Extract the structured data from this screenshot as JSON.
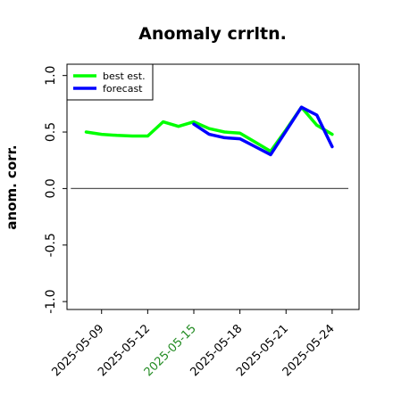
{
  "chart_data": {
    "type": "line",
    "title": "Anomaly crrltn.",
    "ylabel": "anom. corr.",
    "xlabel": "",
    "ylim": [
      -1.07,
      1.1
    ],
    "yticks": [
      -1.0,
      -0.5,
      0.0,
      0.5,
      1.0
    ],
    "ytick_labels": [
      "-1.0",
      "-0.5",
      "0.0",
      "0.5",
      "1.0"
    ],
    "xticks": [
      "2025-05-09",
      "2025-05-12",
      "2025-05-15",
      "2025-05-18",
      "2025-05-21",
      "2025-05-24"
    ],
    "highlighted_xtick": "2025-05-15",
    "highlight_color": "#228b22",
    "xlim": [
      "2025-05-06T18:00",
      "2025-05-25T18:00"
    ],
    "reference_line_y": 0.0,
    "legend": {
      "placement": "top-left",
      "entries": [
        "best est.",
        "forecast"
      ]
    },
    "grid": false,
    "series": [
      {
        "name": "best est.",
        "color": "#00ff00",
        "points": [
          [
            "2025-05-08",
            0.5
          ],
          [
            "2025-05-09",
            0.48
          ],
          [
            "2025-05-10",
            0.47
          ],
          [
            "2025-05-11",
            0.465
          ],
          [
            "2025-05-12",
            0.465
          ],
          [
            "2025-05-13",
            0.59
          ],
          [
            "2025-05-14",
            0.55
          ],
          [
            "2025-05-15",
            0.59
          ],
          [
            "2025-05-16",
            0.53
          ],
          [
            "2025-05-17",
            0.5
          ],
          [
            "2025-05-18",
            0.49
          ],
          [
            "2025-05-19",
            0.41
          ],
          [
            "2025-05-20",
            0.33
          ],
          [
            "2025-05-21",
            0.52
          ],
          [
            "2025-05-22",
            0.72
          ],
          [
            "2025-05-23",
            0.56
          ],
          [
            "2025-05-24",
            0.48
          ]
        ]
      },
      {
        "name": "forecast",
        "color": "#0000ff",
        "points": [
          [
            "2025-05-15",
            0.57
          ],
          [
            "2025-05-16",
            0.48
          ],
          [
            "2025-05-17",
            0.45
          ],
          [
            "2025-05-18",
            0.44
          ],
          [
            "2025-05-19",
            0.37
          ],
          [
            "2025-05-20",
            0.3
          ],
          [
            "2025-05-21",
            0.51
          ],
          [
            "2025-05-22",
            0.72
          ],
          [
            "2025-05-23",
            0.65
          ],
          [
            "2025-05-24",
            0.37
          ]
        ]
      }
    ]
  }
}
